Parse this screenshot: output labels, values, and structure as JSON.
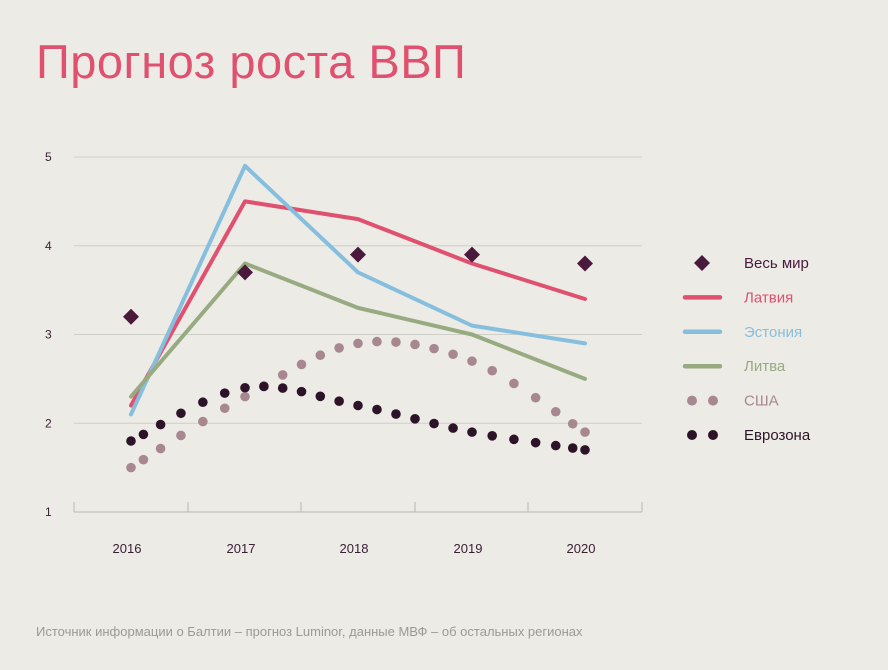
{
  "title": "Прогноз роста ВВП",
  "source": "Источник информации о Балтии – прогноз Luminor, данные МВФ – об остальных регионах",
  "colors": {
    "background": "#ecebe6",
    "title": "#e0506f",
    "world": "#4a1a3c",
    "latvia": "#e0506f",
    "estonia": "#86bfdd",
    "lithuania": "#97aa80",
    "usa": "#a88890",
    "eurozone": "#2c1328",
    "grid": "#cfcfca"
  },
  "chart_data": {
    "type": "line",
    "x": [
      "2016",
      "2017",
      "2018",
      "2019",
      "2020"
    ],
    "ylim": [
      1,
      5
    ],
    "yticks": [
      "1",
      "2",
      "3",
      "4",
      "5"
    ],
    "grid": true,
    "legend": "right",
    "series": [
      {
        "name": "Весь мир",
        "style": "diamond",
        "color": "#4a1a3c",
        "values": [
          3.2,
          3.7,
          3.9,
          3.9,
          3.8
        ]
      },
      {
        "name": "Латвия",
        "style": "line",
        "color": "#e0506f",
        "values": [
          2.2,
          4.5,
          4.3,
          3.8,
          3.4
        ]
      },
      {
        "name": "Эстония",
        "style": "line",
        "color": "#86bfdd",
        "values": [
          2.1,
          4.9,
          3.7,
          3.1,
          2.9
        ]
      },
      {
        "name": "Литва",
        "style": "line",
        "color": "#97aa80",
        "values": [
          2.3,
          3.8,
          3.3,
          3.0,
          2.5
        ]
      },
      {
        "name": "США",
        "style": "dotted",
        "color": "#a88890",
        "values": [
          1.5,
          2.3,
          2.9,
          2.7,
          1.9
        ]
      },
      {
        "name": "Еврозона",
        "style": "dotted",
        "color": "#2c1328",
        "values": [
          1.8,
          2.4,
          2.2,
          1.9,
          1.7
        ]
      }
    ]
  }
}
